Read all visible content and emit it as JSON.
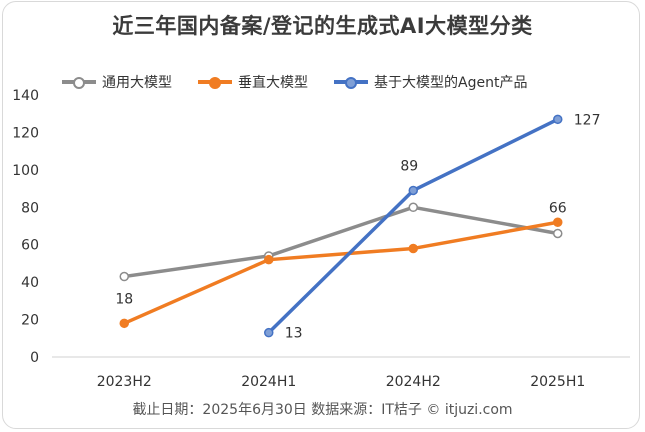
{
  "title": "近三年国内备案/登记的生成式AI大模型分类",
  "footer": "截止日期：2025年6月30日    数据来源：IT桔子 © itjuzi.com",
  "chart_data": {
    "type": "line",
    "categories": [
      "2023H2",
      "2024H1",
      "2024H2",
      "2025H1"
    ],
    "ylim": [
      0,
      140
    ],
    "yticks": [
      0,
      20,
      40,
      60,
      80,
      100,
      120,
      140
    ],
    "grid": false,
    "legend": "top",
    "series": [
      {
        "name": "通用大模型",
        "color": "#8c8c8c",
        "marker_fill": "#ffffff",
        "values": [
          43,
          54,
          80,
          66
        ]
      },
      {
        "name": "垂直大模型",
        "color": "#f07c22",
        "marker_fill": "#f07c22",
        "values": [
          18,
          52,
          58,
          72
        ]
      },
      {
        "name": "基于大模型的Agent产品",
        "color": "#4472c4",
        "marker_fill": "#7f9fd6",
        "values": [
          null,
          13,
          89,
          127
        ]
      }
    ],
    "annotations": [
      {
        "text": "18",
        "category": "2023H2",
        "value": 18
      },
      {
        "text": "13",
        "category": "2024H1",
        "value": 13
      },
      {
        "text": "89",
        "category": "2024H2",
        "value": 89
      },
      {
        "text": "66",
        "category": "2025H1",
        "value": 66
      },
      {
        "text": "127",
        "category": "2025H1",
        "value": 127
      }
    ]
  }
}
